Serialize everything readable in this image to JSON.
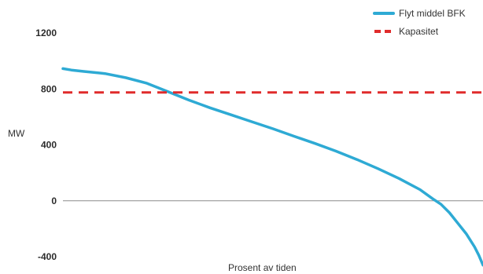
{
  "chart_data": {
    "type": "line",
    "title": "",
    "xlabel": "Prosent av tiden",
    "ylabel": "MW",
    "x_range": [
      0,
      100
    ],
    "ylim": [
      -400,
      1200
    ],
    "y_ticks": [
      -400,
      0,
      400,
      800,
      1200
    ],
    "y_tick_labels": [
      "-400",
      "0",
      "400",
      "800",
      "1200"
    ],
    "grid": false,
    "zero_line": true,
    "legend_position": "top-right",
    "series": [
      {
        "name": "Flyt middel BFK",
        "color": "#2eaad4",
        "style": "solid",
        "x": [
          0,
          2,
          5,
          10,
          15,
          20,
          25,
          30,
          35,
          40,
          45,
          50,
          55,
          60,
          65,
          70,
          75,
          80,
          85,
          88,
          90,
          92,
          94,
          96,
          98,
          99,
          100
        ],
        "values": [
          945,
          935,
          925,
          910,
          880,
          840,
          780,
          720,
          665,
          615,
          565,
          515,
          462,
          410,
          355,
          295,
          230,
          160,
          80,
          15,
          -25,
          -85,
          -160,
          -235,
          -330,
          -390,
          -460
        ]
      },
      {
        "name": "Kapasitet",
        "color": "#e02b2b",
        "style": "dashed",
        "x": [
          0,
          100
        ],
        "values": [
          775,
          775
        ]
      }
    ]
  }
}
